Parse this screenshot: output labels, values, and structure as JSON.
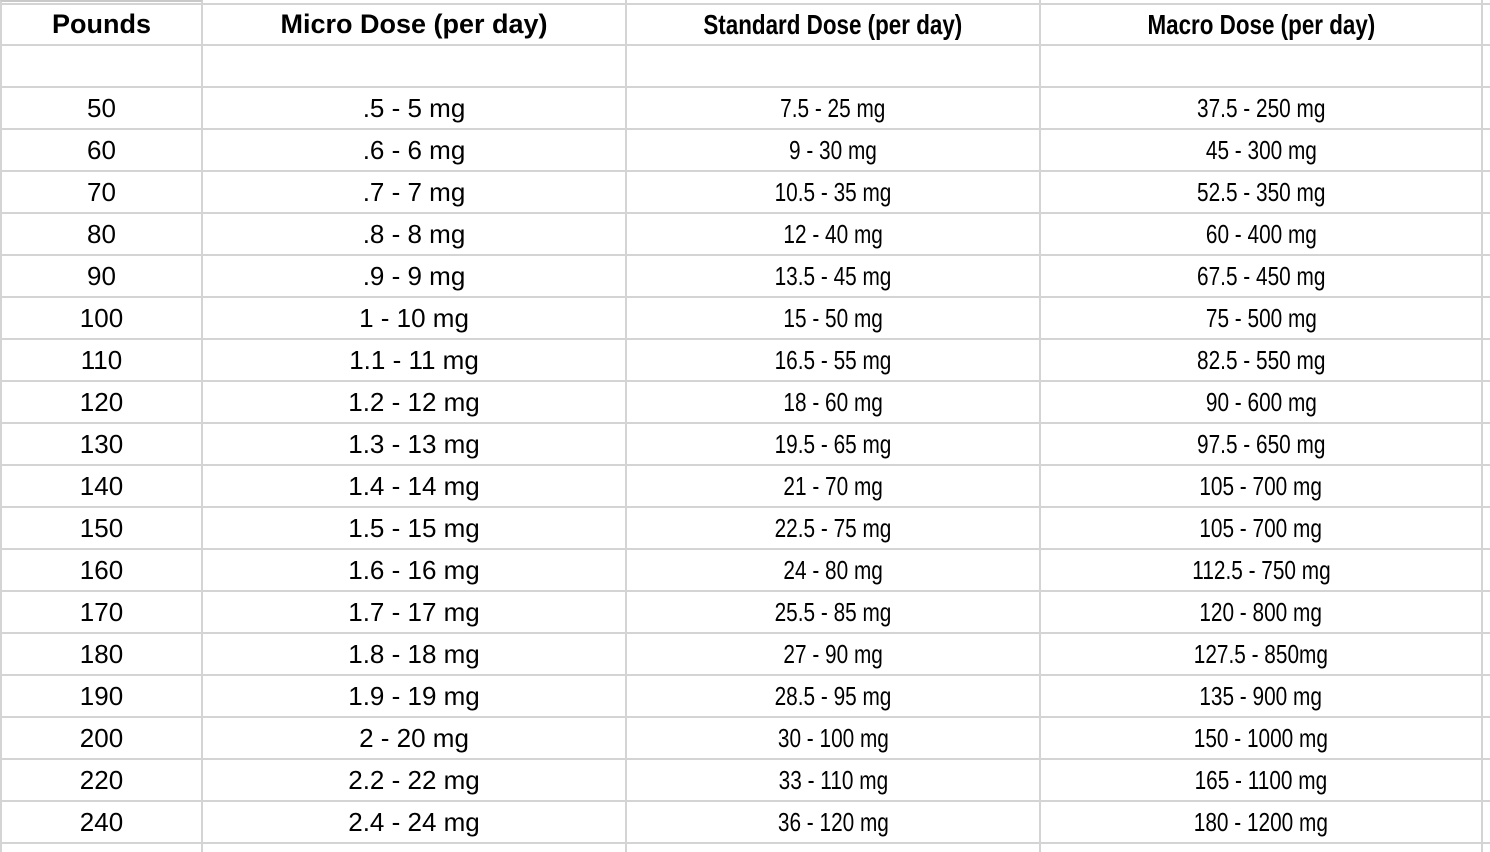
{
  "table": {
    "grid_color": "#d4d4d4",
    "text_color": "#000000",
    "background_color": "#ffffff",
    "columns": [
      {
        "label": "Pounds"
      },
      {
        "label": "Micro Dose (per day)"
      },
      {
        "label": "Standard Dose (per day)"
      },
      {
        "label": "Macro Dose (per day)"
      }
    ],
    "rows": [
      {
        "pounds": "50",
        "micro": ".5 - 5 mg",
        "standard": "7.5 - 25 mg",
        "macro": "37.5 - 250 mg"
      },
      {
        "pounds": "60",
        "micro": ".6 - 6 mg",
        "standard": "9 - 30 mg",
        "macro": "45 - 300 mg"
      },
      {
        "pounds": "70",
        "micro": ".7 - 7 mg",
        "standard": "10.5 - 35 mg",
        "macro": "52.5 - 350 mg"
      },
      {
        "pounds": "80",
        "micro": ".8 - 8 mg",
        "standard": "12 - 40 mg",
        "macro": "60 - 400 mg"
      },
      {
        "pounds": "90",
        "micro": ".9 - 9 mg",
        "standard": "13.5 - 45 mg",
        "macro": "67.5 - 450 mg"
      },
      {
        "pounds": "100",
        "micro": "1 - 10 mg",
        "standard": "15 - 50 mg",
        "macro": "75 - 500 mg"
      },
      {
        "pounds": "110",
        "micro": "1.1 - 11 mg",
        "standard": "16.5 - 55 mg",
        "macro": "82.5 - 550 mg"
      },
      {
        "pounds": "120",
        "micro": "1.2 - 12 mg",
        "standard": "18 - 60 mg",
        "macro": "90 - 600 mg"
      },
      {
        "pounds": "130",
        "micro": "1.3 - 13 mg",
        "standard": "19.5 - 65 mg",
        "macro": "97.5 - 650 mg"
      },
      {
        "pounds": "140",
        "micro": "1.4 - 14 mg",
        "standard": "21 - 70 mg",
        "macro": "105 - 700 mg"
      },
      {
        "pounds": "150",
        "micro": "1.5 - 15 mg",
        "standard": "22.5 - 75 mg",
        "macro": "105 - 700 mg"
      },
      {
        "pounds": "160",
        "micro": "1.6 - 16 mg",
        "standard": "24 - 80 mg",
        "macro": "112.5 - 750 mg"
      },
      {
        "pounds": "170",
        "micro": "1.7 - 17 mg",
        "standard": "25.5 - 85 mg",
        "macro": "120 - 800 mg"
      },
      {
        "pounds": "180",
        "micro": "1.8 - 18 mg",
        "standard": "27 - 90 mg",
        "macro": "127.5 - 850mg"
      },
      {
        "pounds": "190",
        "micro": "1.9 - 19 mg",
        "standard": "28.5 - 95 mg",
        "macro": "135 - 900 mg"
      },
      {
        "pounds": "200",
        "micro": "2 - 20 mg",
        "standard": "30 - 100 mg",
        "macro": "150 - 1000 mg"
      },
      {
        "pounds": "220",
        "micro": "2.2 - 22 mg",
        "standard": "33 - 110 mg",
        "macro": "165 - 1100 mg"
      },
      {
        "pounds": "240",
        "micro": "2.4 - 24 mg",
        "standard": "36 - 120 mg",
        "macro": "180 - 1200 mg"
      }
    ]
  }
}
